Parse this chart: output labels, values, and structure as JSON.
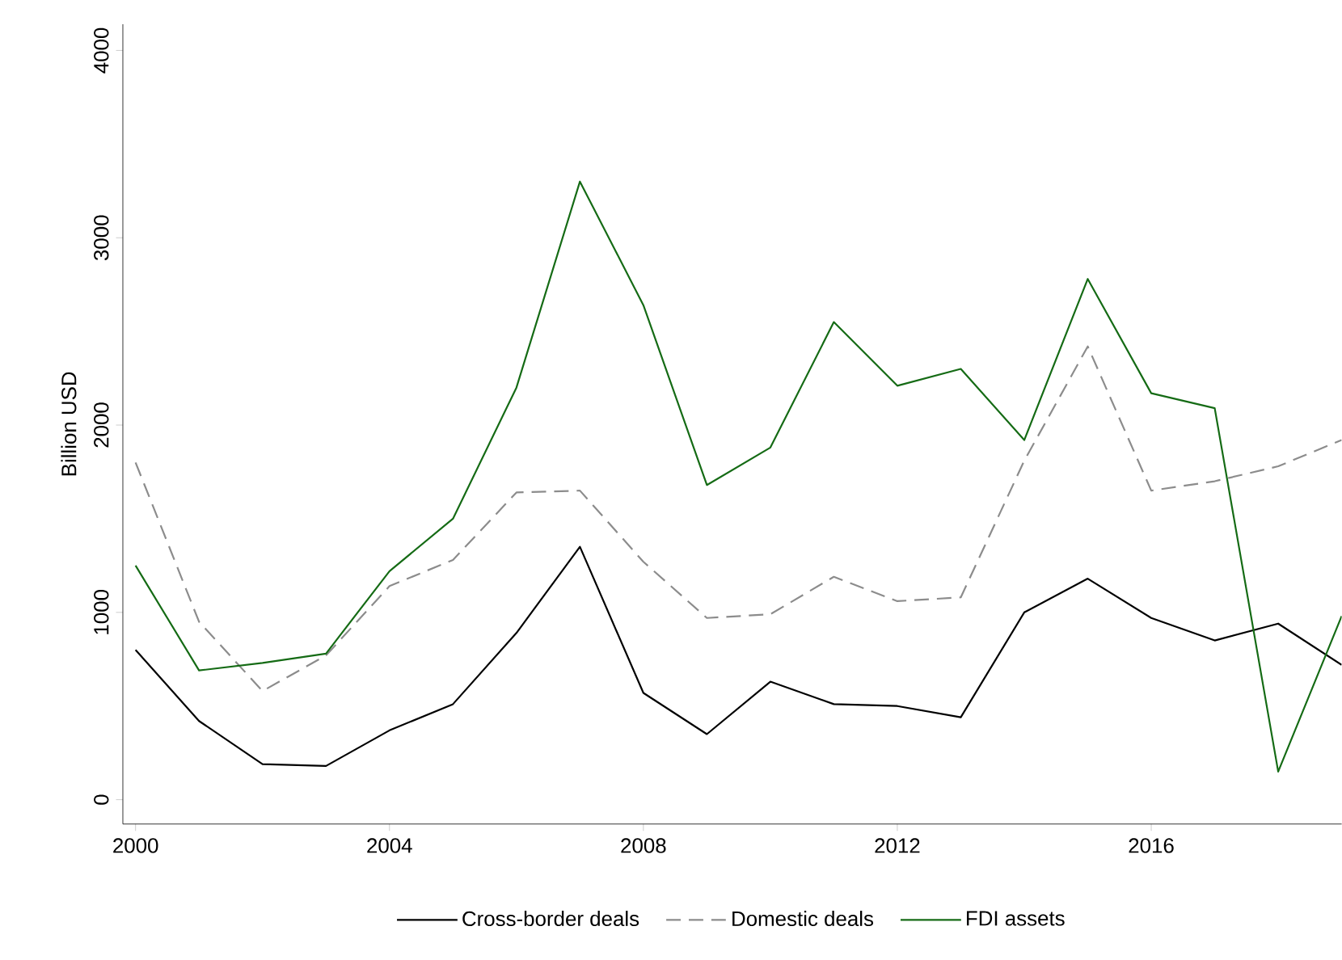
{
  "chart_data": {
    "type": "line",
    "ylabel": "Billion USD",
    "x": [
      2000,
      2001,
      2002,
      2003,
      2004,
      2005,
      2006,
      2007,
      2008,
      2009,
      2010,
      2011,
      2012,
      2013,
      2014,
      2015,
      2016,
      2017,
      2018,
      2019
    ],
    "series": [
      {
        "name": "Cross-border deals",
        "color": "#000000",
        "line_style": "solid",
        "values": [
          800,
          420,
          190,
          180,
          370,
          510,
          890,
          1350,
          570,
          350,
          630,
          510,
          500,
          440,
          1000,
          1180,
          970,
          850,
          940,
          720
        ]
      },
      {
        "name": "Domestic deals",
        "color": "#8c8c8c",
        "line_style": "dashed",
        "values": [
          1800,
          950,
          580,
          770,
          1140,
          1280,
          1640,
          1650,
          1270,
          970,
          990,
          1190,
          1060,
          1080,
          1810,
          2420,
          1650,
          1700,
          1780,
          1920
        ]
      },
      {
        "name": "FDI assets",
        "color": "#156b15",
        "line_style": "solid",
        "values": [
          1250,
          690,
          730,
          780,
          1220,
          1500,
          2200,
          3300,
          2640,
          1680,
          1880,
          2550,
          2210,
          2300,
          1920,
          2780,
          2170,
          2090,
          150,
          980
        ]
      }
    ],
    "xlim": [
      1999.8,
      2019
    ],
    "xticks": [
      2000,
      2004,
      2008,
      2012,
      2016
    ],
    "ylim": [
      -130,
      4140
    ],
    "yticks": [
      0,
      1000,
      2000,
      3000,
      4000
    ],
    "grid": false,
    "legend": "bottom",
    "marker": "none"
  }
}
